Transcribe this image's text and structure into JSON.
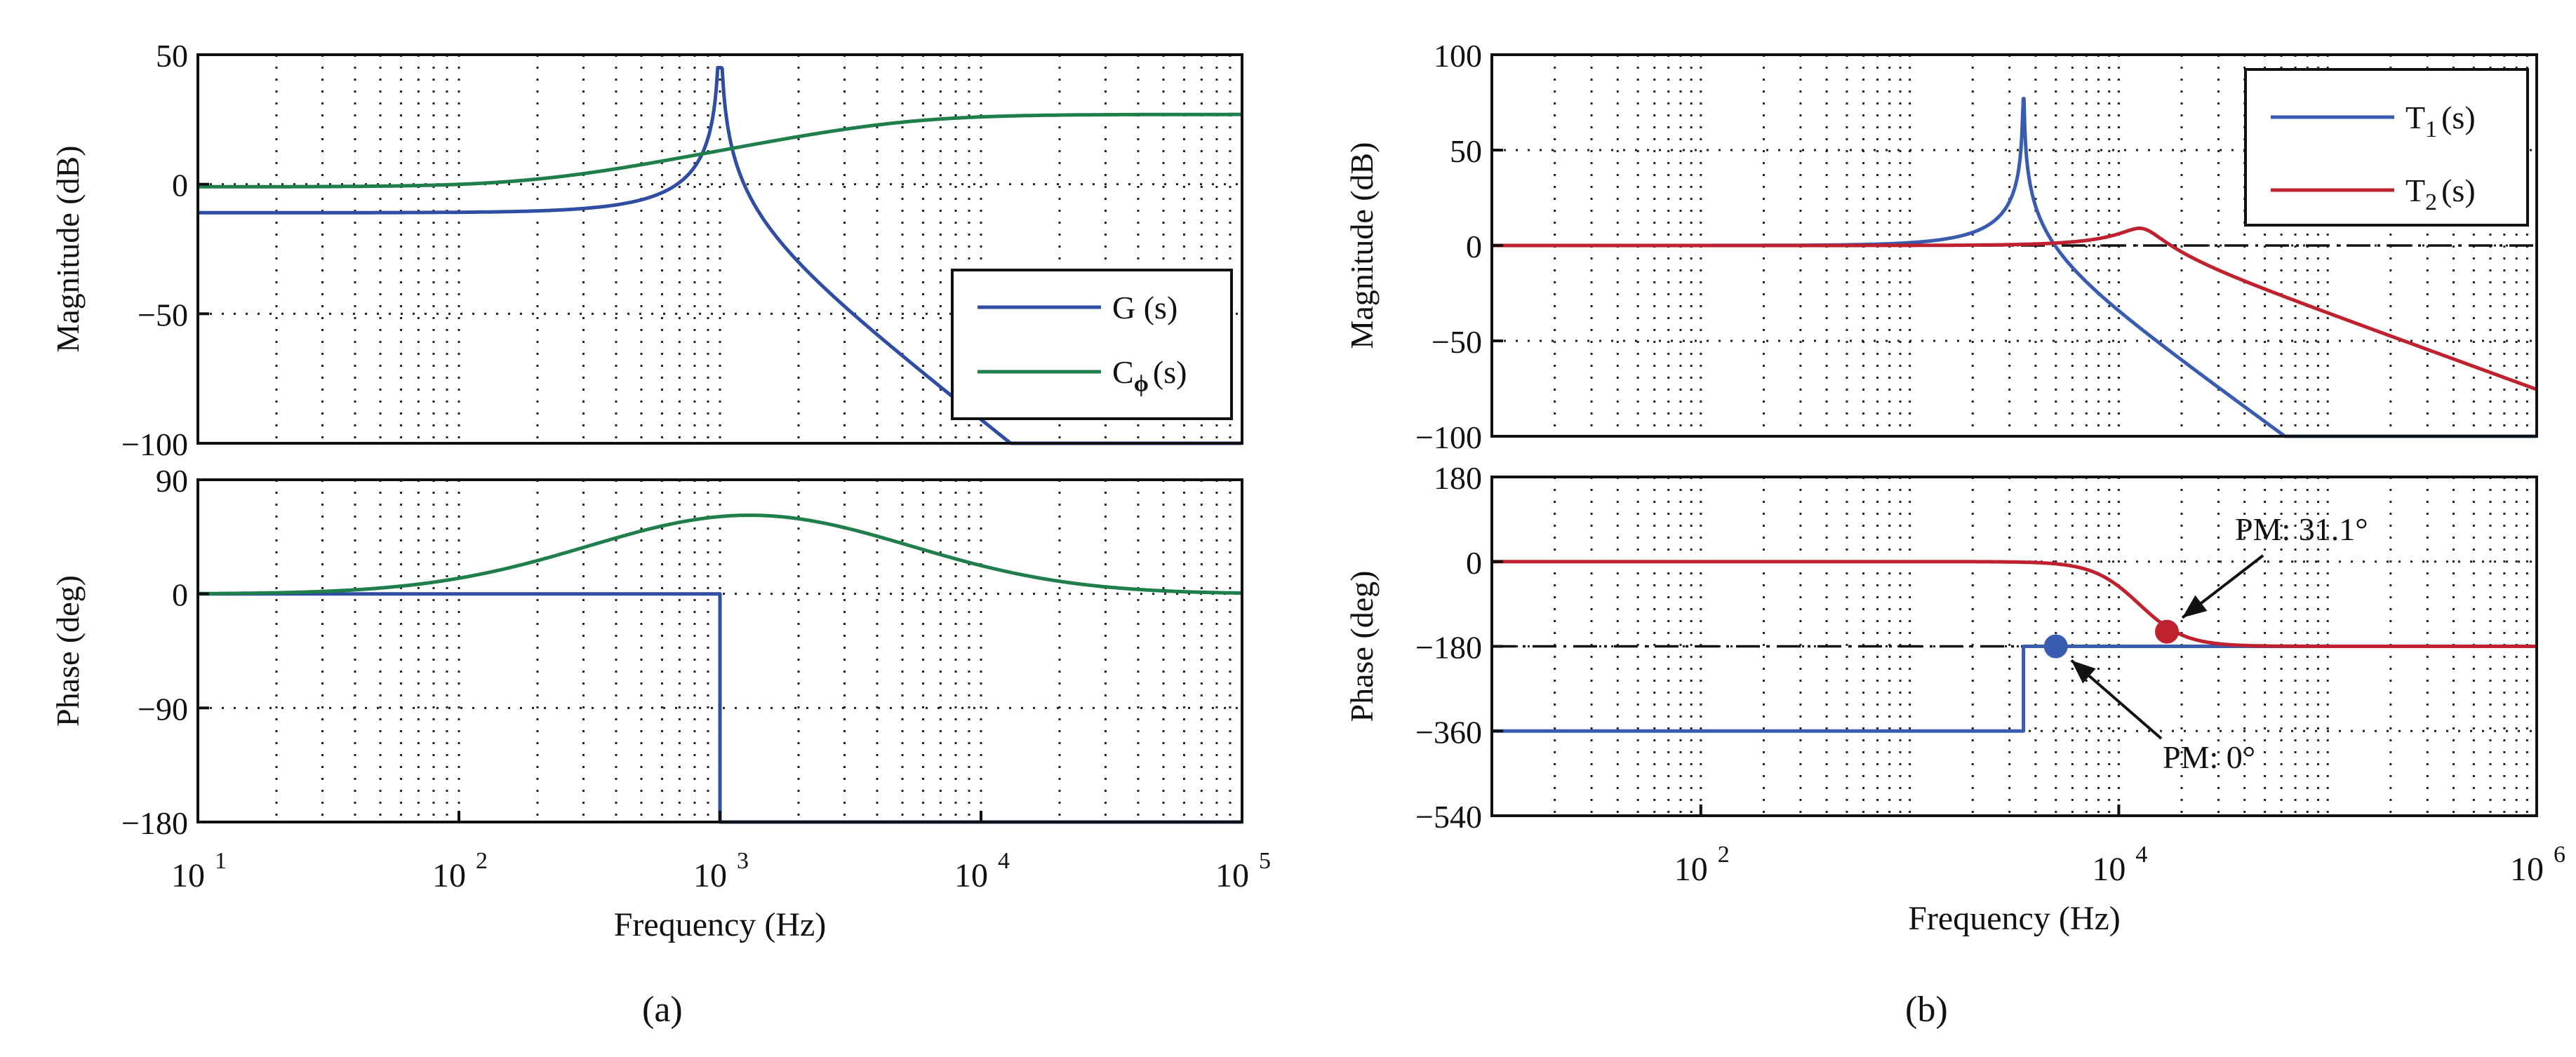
{
  "colors": {
    "g_blue": "#2f4ea1",
    "c_green": "#1e7f4a",
    "t1_blue": "#3a5cb0",
    "t2_red": "#c0212e",
    "axis": "#111111"
  },
  "panels": {
    "a": {
      "caption": "(a)"
    },
    "b": {
      "caption": "(b)"
    }
  },
  "chart_data": [
    {
      "id": "a-mag",
      "type": "line",
      "xscale": "log",
      "xlim": [
        10,
        100000
      ],
      "ylim": [
        -100,
        50
      ],
      "yticks": [
        50,
        0,
        -50,
        -100
      ],
      "ytick_labels": [
        "50",
        "0",
        "−50",
        "−100"
      ],
      "ylabel": "Magnitude (dB)",
      "grid": true,
      "legend": {
        "placement": "lower-right"
      },
      "series": [
        {
          "name": "G (s)",
          "label_main": "G (s)",
          "color_key": "g_blue",
          "kind": "resonance_mag",
          "low_db": -11,
          "f0": 1000,
          "peak_db": 45,
          "q": 150,
          "rolloff_db_per_decade": -40
        },
        {
          "name": "Cϕ(s)",
          "label_main": "C",
          "label_sub": "ϕ",
          "label_tail": "(s)",
          "color_key": "c_green",
          "kind": "lead_mag",
          "low_db": -1,
          "high_db": 24,
          "f_low": 200,
          "f_high": 5000
        }
      ]
    },
    {
      "id": "a-phase",
      "type": "line",
      "xscale": "log",
      "xlim": [
        10,
        100000
      ],
      "ylim": [
        -180,
        90
      ],
      "yticks": [
        90,
        0,
        -90,
        -180
      ],
      "ytick_labels": [
        "90",
        "0",
        "−90",
        "−180"
      ],
      "ylabel": "Phase (deg)",
      "xlabel": "Frequency  (Hz)",
      "xticks": [
        10,
        100,
        1000,
        10000,
        100000
      ],
      "xtick_base": [
        "10",
        "10",
        "10",
        "10",
        "10"
      ],
      "xtick_exp": [
        "1",
        "2",
        "3",
        "4",
        "5"
      ],
      "grid": true,
      "series": [
        {
          "name": "G (s)",
          "color_key": "g_blue",
          "kind": "step_phase",
          "before_deg": 0,
          "after_deg": -180,
          "f_step": 1000
        },
        {
          "name": "Cϕ(s)",
          "color_key": "c_green",
          "kind": "lead_phase",
          "peak_deg": 62,
          "f_center": 1300
        }
      ]
    },
    {
      "id": "b-mag",
      "type": "line",
      "xscale": "log",
      "xlim": [
        10,
        1000000
      ],
      "ylim": [
        -100,
        100
      ],
      "yticks": [
        100,
        50,
        0,
        -50,
        -100
      ],
      "ytick_labels": [
        "100",
        "50",
        "0",
        "−50",
        "−100"
      ],
      "ylabel": "Magnitude (dB)",
      "grid": true,
      "reference_lines": [
        {
          "y": 0,
          "style": "dash-dot"
        }
      ],
      "legend": {
        "placement": "top-right"
      },
      "series": [
        {
          "name": "T1(s)",
          "label_main": "T",
          "label_sub": "1",
          "label_tail": "(s)",
          "color_key": "t1_blue",
          "kind": "resonance_mag",
          "low_db": 0,
          "f0": 3500,
          "peak_db": 77,
          "q": 250,
          "rolloff_db_per_decade": -40
        },
        {
          "name": "T2(s)",
          "label_main": "T",
          "label_sub": "2",
          "label_tail": "(s)",
          "color_key": "t2_red",
          "kind": "lowpass_bump",
          "low_db": 0,
          "f0": 13000,
          "peak_db": 9,
          "rolloff_db_per_decade": -40
        }
      ]
    },
    {
      "id": "b-phase",
      "type": "line",
      "xscale": "log",
      "xlim": [
        10,
        1000000
      ],
      "ylim": [
        -540,
        180
      ],
      "yticks": [
        180,
        0,
        -180,
        -360,
        -540
      ],
      "ytick_labels": [
        "180",
        "0",
        "−180",
        "−360",
        "−540"
      ],
      "ylabel": "Phase (deg)",
      "xlabel": "Frequency  (Hz)",
      "xticks": [
        100,
        10000,
        1000000
      ],
      "xtick_base": [
        "10",
        "10",
        "10"
      ],
      "xtick_exp": [
        "2",
        "4",
        "6"
      ],
      "grid": true,
      "reference_lines": [
        {
          "y": -180,
          "style": "dash-dot"
        }
      ],
      "series": [
        {
          "name": "T1(s)",
          "color_key": "t1_blue",
          "kind": "step_phase",
          "before_deg": -360,
          "after_deg": -180,
          "f_step": 3500
        },
        {
          "name": "T2(s)",
          "color_key": "t2_red",
          "kind": "drop_phase",
          "before_deg": 0,
          "after_deg": -180,
          "f_center": 12500
        }
      ],
      "annotations": [
        {
          "text": "PM: 31.1°",
          "x": 17000,
          "y": -148.9,
          "color_key": "t2_red"
        },
        {
          "text": "PM: 0°",
          "x": 5000,
          "y": -180,
          "color_key": "t1_blue"
        }
      ]
    }
  ]
}
